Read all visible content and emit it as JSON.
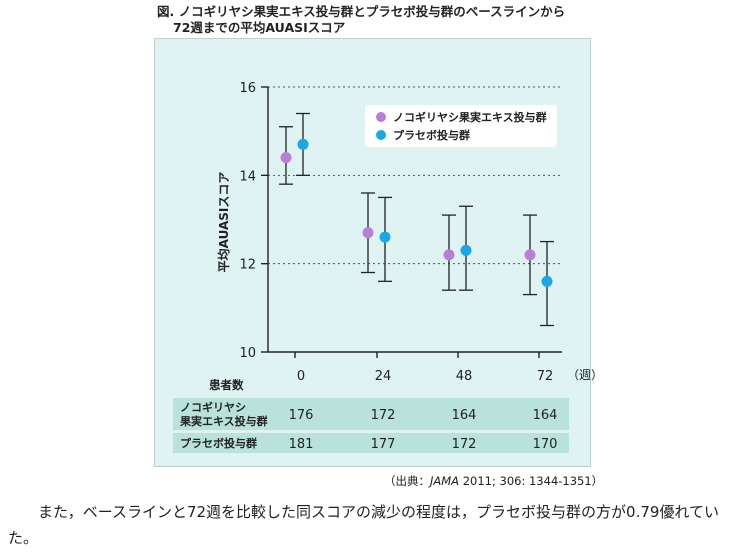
{
  "figure": {
    "title_line1": "図. ノコギリヤシ果実エキス投与群とプラセボ投与群のベースラインから",
    "title_line2": "72週までの平均AUASIスコア"
  },
  "source": {
    "prefix": "（出典：",
    "journal": "JAMA",
    "suffix": " 2011; 306: 1344-1351）"
  },
  "body_text": "また，ベースラインと72週を比較した同スコアの減少の程度は，プラセボ投与群の方が0.79優れていた。",
  "chart_data": {
    "type": "scatter",
    "ylabel": "平均AUASIスコア",
    "xlabel": "",
    "x_unit_label": "（週）",
    "ylim": [
      10,
      16
    ],
    "yticks": [
      10,
      12,
      14,
      16
    ],
    "x": [
      0,
      24,
      48,
      72
    ],
    "xtick_labels": [
      "0",
      "24",
      "48",
      "72"
    ],
    "grid": "dotted horizontal at 12, 14, 16",
    "legend_position": "top-right",
    "series": [
      {
        "name": "ノコギリヤシ果実エキス投与群",
        "color": "#b77fd6",
        "values": [
          14.4,
          12.7,
          12.2,
          12.2
        ],
        "err_low": [
          13.8,
          11.8,
          11.4,
          11.3
        ],
        "err_high": [
          15.1,
          13.6,
          13.1,
          13.1
        ]
      },
      {
        "name": "プラセボ投与群",
        "color": "#1aa7e6",
        "values": [
          14.7,
          12.6,
          12.3,
          11.6
        ],
        "err_low": [
          14.0,
          11.6,
          11.4,
          10.6
        ],
        "err_high": [
          15.4,
          13.5,
          13.3,
          12.5
        ]
      }
    ],
    "patients_table": {
      "header": "患者数",
      "rows": [
        {
          "label_line1": "ノコギリヤシ",
          "label_line2": "果実エキス投与群",
          "values": [
            "176",
            "172",
            "164",
            "164"
          ]
        },
        {
          "label_line1": "プラセボ投与群",
          "label_line2": "",
          "values": [
            "181",
            "177",
            "172",
            "170"
          ]
        }
      ]
    }
  }
}
